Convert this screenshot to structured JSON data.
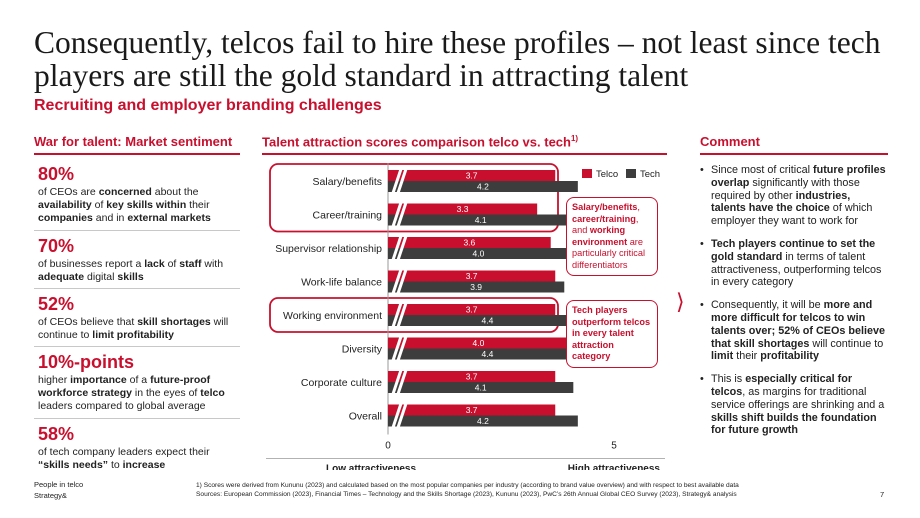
{
  "title": "Consequently, telcos fail to hire these profiles – not least since tech players are still the gold standard in attracting talent",
  "subtitle": "Recruiting and employer branding challenges",
  "left_section": {
    "heading": "War for talent: Market sentiment",
    "stats": [
      {
        "value": "80%",
        "desc_html": "of CEOs are <b>concerned</b> about the <b>availability</b> of <b>key skills within</b> their <b>companies</b> and in <b>external markets</b>"
      },
      {
        "value": "70%",
        "desc_html": "of businesses report a <b>lack</b> of <b>staff</b> with <b>adequate</b> digital <b>skills</b>"
      },
      {
        "value": "52%",
        "desc_html": "of CEOs believe that <b>skill shortages</b> will continue to <b>limit profitability</b>"
      },
      {
        "value": "10%-points",
        "desc_html": "higher <b>importance</b> of a <b>future-proof workforce strategy</b> in the eyes of <b>telco</b> leaders compared to global average"
      },
      {
        "value": "58%",
        "desc_html": "of tech company leaders expect their <b>“skills needs”</b> to <b>increase</b>"
      }
    ]
  },
  "middle_section": {
    "heading": "Talent attraction scores comparison telco vs. tech",
    "heading_sup": "1)"
  },
  "chart_data": {
    "type": "bar",
    "orientation": "horizontal",
    "categories": [
      "Salary/benefits",
      "Career/training",
      "Supervisor relationship",
      "Work-life balance",
      "Working environment",
      "Diversity",
      "Corporate culture",
      "Overall"
    ],
    "series": [
      {
        "name": "Telco",
        "color": "#c8102e",
        "values": [
          3.7,
          3.3,
          3.6,
          3.7,
          3.7,
          4.0,
          3.7,
          3.7
        ]
      },
      {
        "name": "Tech",
        "color": "#3d3d3d",
        "values": [
          4.2,
          4.1,
          4.0,
          3.9,
          4.4,
          4.4,
          4.1,
          4.2
        ]
      }
    ],
    "xlim": [
      0,
      5
    ],
    "axis_break": true,
    "x_ticks": [
      "0",
      "5"
    ],
    "x_low_label": "Low attractiveness",
    "x_high_label": "High attractiveness",
    "legend_position": "top-right",
    "highlighted_categories": [
      "Salary/benefits",
      "Career/training",
      "Working environment"
    ],
    "callouts": [
      {
        "html": "<b>Salary/benefits</b>, <b>career/training</b>, and <b>working environment</b> are particularly critical differentiators"
      },
      {
        "html": "<b>Tech players outperform telcos in every talent attraction category</b>"
      }
    ]
  },
  "right_section": {
    "heading": "Comment",
    "bullets": [
      {
        "html": "Since most of critical <b>future profiles overlap</b> significantly with those required by other <b>industries, talents have the choice</b> of which employer they want to work for"
      },
      {
        "html": "<b>Tech players continue to set the gold standard</b> in terms of talent attractiveness, outperforming telcos in every category"
      },
      {
        "html": "Consequently, it will be <b>more and more difficult for telcos to win talents over; 52% of CEOs believe that skill shortages</b> will continue to <b>limit</b> their <b>profitability</b>"
      },
      {
        "html": "This is <b>especially critical for telcos</b>, as margins for traditional service offerings are shrinking and a <b>skills shift builds the foundation for future growth</b>"
      }
    ]
  },
  "footer": {
    "tag": "People in telco",
    "brand": "Strategy&",
    "footnote1": "1) Scores were derived from Kununu (2023) and calculated based on the most popular companies per industry (according to brand value overview) and with respect to best available data",
    "sources": "Sources: European Commission (2023), Financial Times – Technology and the Skills Shortage (2023), Kununu (2023), PwC’s 26th Annual Global CEO Survey (2023), Strategy& analysis",
    "page": "7"
  },
  "colors": {
    "accent": "#c8102e",
    "dark_bar": "#3d3d3d",
    "text": "#222222"
  }
}
